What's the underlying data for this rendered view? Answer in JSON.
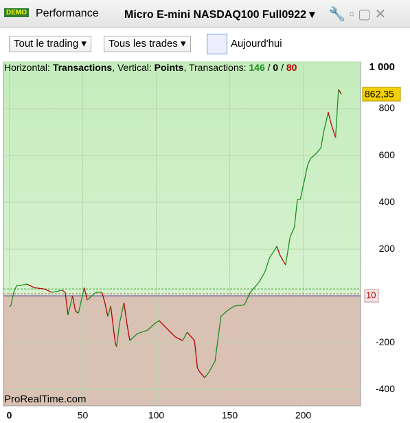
{
  "window": {
    "badge": "DEMO",
    "tab": "Performance",
    "instrument": "Micro E-mini NASDAQ100 Full0922"
  },
  "toolbar": {
    "filter1": "Tout le trading",
    "filter2": "Tous les trades",
    "date": "Aujourd'hui"
  },
  "info": {
    "h_label": "Horizontal:",
    "h_value": "Transactions",
    "v_label": ", Vertical:",
    "v_value": "Points",
    "t_label": ", Transactions:",
    "wins": 146,
    "sep1": "/",
    "even": 0,
    "sep2": "/",
    "losses": 80
  },
  "chart_data": {
    "type": "line",
    "x": [
      0,
      1,
      3,
      5,
      7,
      12,
      17,
      24,
      29,
      36,
      38,
      40,
      43,
      45,
      47,
      51,
      53,
      59,
      63,
      65,
      67,
      69,
      72,
      73,
      75,
      78,
      80,
      82,
      87,
      94,
      99,
      102,
      106,
      113,
      118,
      121,
      126,
      128,
      130,
      133,
      136,
      140,
      144,
      148,
      153,
      160,
      164,
      170,
      174,
      177,
      180,
      182,
      184,
      188,
      191,
      194,
      196,
      198,
      200,
      203,
      205,
      208,
      212,
      214,
      217,
      219,
      222,
      224,
      226
    ],
    "values": [
      -44,
      -44,
      15,
      44,
      44,
      50,
      35,
      29,
      15,
      24,
      15,
      -82,
      0,
      -65,
      -74,
      35,
      -18,
      15,
      15,
      -29,
      -88,
      -44,
      -197,
      -218,
      -118,
      -29,
      -118,
      -191,
      -162,
      -147,
      -118,
      -106,
      -132,
      -176,
      -191,
      -156,
      -191,
      -309,
      -329,
      -350,
      -324,
      -279,
      -88,
      -65,
      -44,
      -38,
      15,
      59,
      103,
      162,
      191,
      212,
      176,
      132,
      250,
      294,
      412,
      412,
      471,
      559,
      588,
      603,
      632,
      703,
      785,
      735,
      676,
      882,
      862
    ],
    "up_color": "#1e8c1e",
    "down_color": "#b40000",
    "xlim": [
      -4,
      239
    ],
    "ylim": [
      -470,
      1000
    ],
    "xticks": [
      0,
      50,
      100,
      150,
      200
    ],
    "yticks": [
      -400,
      -200,
      200,
      400,
      600,
      800,
      {
        "value": 1000,
        "label": "1 000"
      }
    ],
    "last_label": "862,35",
    "zero_label": "10",
    "watermark": "ProRealTime.com"
  }
}
